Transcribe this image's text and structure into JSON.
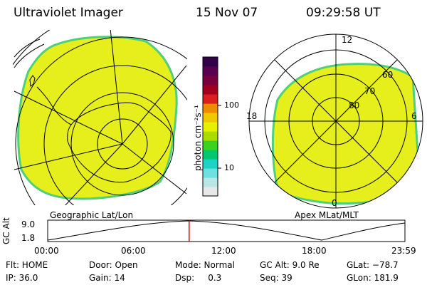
{
  "header": {
    "title": "Ultraviolet Imager",
    "date": "15 Nov 07",
    "time": "09:29:58 UT"
  },
  "panels": {
    "left_caption": "Geographic Lat/Lon",
    "right_caption": "Apex MLat/MLT",
    "right_labels": {
      "top": "12",
      "left": "18",
      "right": "6",
      "bottom": "0",
      "lat60": "60",
      "lat70": "70",
      "lat80": "80"
    }
  },
  "colorbar": {
    "unit": "photon cm⁻²s⁻¹",
    "tick_100": "100",
    "tick_10": "10",
    "scale": "log",
    "colors": [
      "#e8e8e8",
      "#b9e6e6",
      "#6fe0e0",
      "#1ed2c8",
      "#00c86e",
      "#3cd21e",
      "#aadc00",
      "#e6f000",
      "#f0c800",
      "#f08c00",
      "#dc1e1e",
      "#a0001e",
      "#78003c",
      "#5a0050",
      "#320046"
    ]
  },
  "fill_colors": {
    "image": "#e6ef1c",
    "edge": "#4fcf7a",
    "grid": "#000000"
  },
  "altitude_plot": {
    "ylabel": "GC Alt",
    "y_top": "9.0",
    "y_bottom": "1.8",
    "x_ticks": [
      "00:00",
      "06:00",
      "12:00",
      "18:00",
      "23:59"
    ],
    "current_time_fraction": 0.396,
    "marker_color": "#e60000"
  },
  "status": {
    "flt": "Flt: HOME",
    "ip": "IP: 36.0",
    "door": "Door: Open",
    "gain": "Gain: 14",
    "mode": "Mode: Normal",
    "dsp": "Dsp:     0.3",
    "gcalt": "GC Alt: 9.0 Re",
    "seq": "Seq: 39",
    "glat": "GLat: −78.7",
    "glon": "GLon: 181.9"
  }
}
